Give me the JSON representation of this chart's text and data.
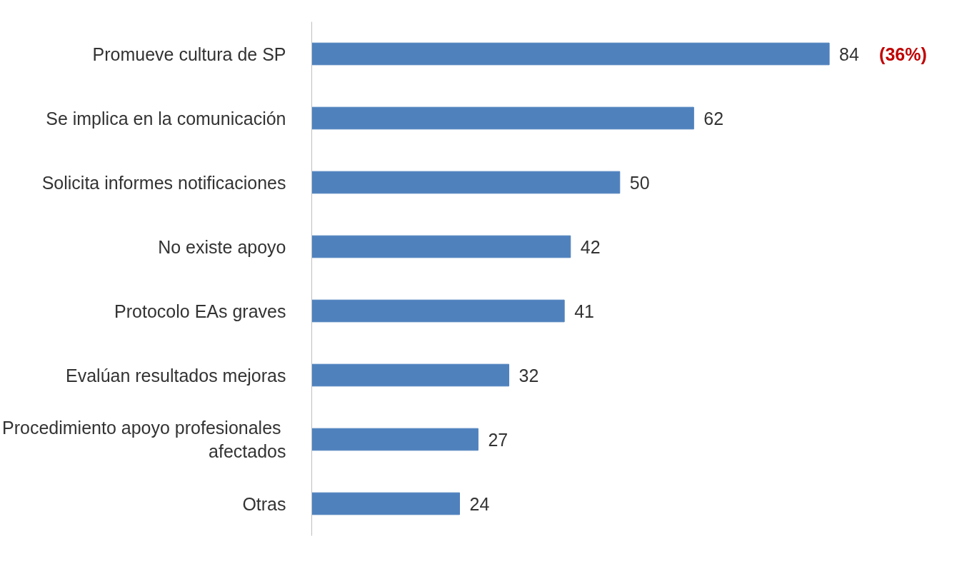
{
  "chart_data": {
    "type": "bar",
    "orientation": "horizontal",
    "categories": [
      "Promueve cultura de SP",
      "Se implica en la comunicación",
      "Solicita informes notificaciones",
      "No existe apoyo",
      "Protocolo EAs graves",
      "Evalúan resultados mejoras",
      "Procedimiento  apoyo profesionales\nafectados",
      "Otras"
    ],
    "values": [
      84,
      62,
      50,
      42,
      41,
      32,
      27,
      24
    ],
    "color": "#4f81bd",
    "data_labels": true,
    "grid": false,
    "annotations": [
      {
        "text": "(36%)",
        "x": 84,
        "y": "Promueve cultura de SP"
      }
    ]
  }
}
